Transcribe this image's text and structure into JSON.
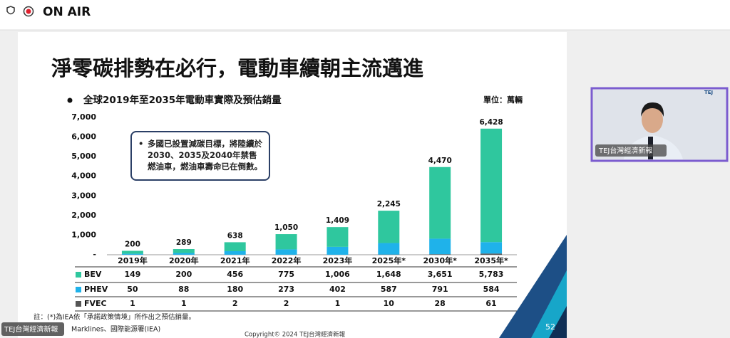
{
  "top_bar": {
    "status": "ON AIR"
  },
  "slide": {
    "title": "淨零碳排勢在必行，電動車續朝主流邁進",
    "note": "註：(*)為IEA依「承諾政策情境」所作出之預估銷量。",
    "source": "Marklines、國際能源署(IEA)",
    "copyright": "Copyright© 2024 TEJ台灣經濟新報",
    "page_number": "52"
  },
  "chart_data": {
    "type": "bar",
    "stacked": true,
    "subtitle": "全球2019年至2035年電動車實際及預估銷量",
    "unit": "單位：萬輛",
    "annotation": "多國已設置減碳目標，將陸續於2030、2035及2040年禁售燃油車，燃油車壽命已在倒數。",
    "categories": [
      "2019年",
      "2020年",
      "2021年",
      "2022年",
      "2023年",
      "2025年*",
      "2030年*",
      "2035年*"
    ],
    "series": [
      {
        "name": "BEV",
        "color": "#2fc79e",
        "values": [
          149,
          200,
          456,
          775,
          1006,
          1648,
          3651,
          5783
        ],
        "value_labels": [
          "149",
          "200",
          "456",
          "775",
          "1,006",
          "1,648",
          "3,651",
          "5,783"
        ]
      },
      {
        "name": "PHEV",
        "color": "#1fb2ea",
        "values": [
          50,
          88,
          180,
          273,
          402,
          587,
          791,
          584
        ]
      },
      {
        "name": "FVEC",
        "color": "#555555",
        "values": [
          1,
          1,
          2,
          2,
          1,
          10,
          28,
          61
        ]
      }
    ],
    "totals": {
      "values": [
        200,
        289,
        638,
        1050,
        1409,
        2245,
        4470,
        6428
      ],
      "value_labels": [
        "200",
        "289",
        "638",
        "1,050",
        "1,409",
        "2,245",
        "4,470",
        "6,428"
      ]
    },
    "ylim": [
      0,
      7000
    ],
    "yticks": [
      {
        "value": 0,
        "label": "-"
      },
      {
        "value": 1000,
        "label": "1,000"
      },
      {
        "value": 2000,
        "label": "2,000"
      },
      {
        "value": 3000,
        "label": "3,000"
      },
      {
        "value": 4000,
        "label": "4,000"
      },
      {
        "value": 5000,
        "label": "5,000"
      },
      {
        "value": 6000,
        "label": "6,000"
      },
      {
        "value": 7000,
        "label": "7,000"
      }
    ],
    "grid": false
  },
  "webcam": {
    "label": "TEJ台灣經濟新報"
  },
  "overlay": {
    "label": "TEJ台灣經濟新報"
  }
}
